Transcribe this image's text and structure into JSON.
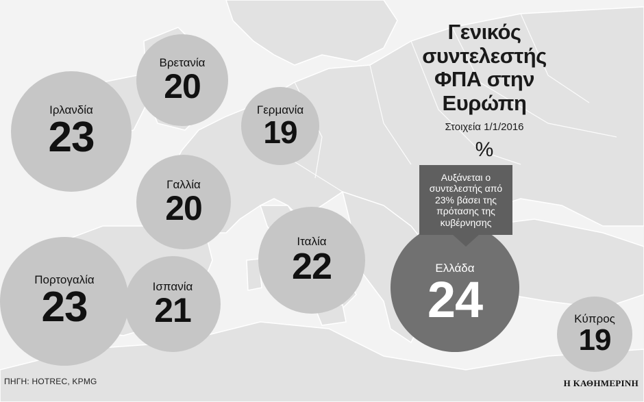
{
  "title": "Γενικός συντελεστής ΦΠΑ στην Ευρώπη",
  "date_note": "Στοιχεία 1/1/2016",
  "unit": "%",
  "callout": "Αυξάνεται ο συντελεστής από 23% βάσει της πρότασης της κυβέρνησης",
  "source": "ΠΗΓΗ: HOTREC, KPMG",
  "publisher": "Η ΚΑΘΗΜΕΡΙΝΗ",
  "colors": {
    "bubble": "#c6c6c6",
    "highlight_bubble": "#717171",
    "callout": "#5f5f5f",
    "land": "#e2e2e2",
    "sea": "#f3f3f3"
  },
  "countries": [
    {
      "name": "Βρετανία",
      "value": 20
    },
    {
      "name": "Ιρλανδία",
      "value": 23
    },
    {
      "name": "Γερμανία",
      "value": 19
    },
    {
      "name": "Γαλλία",
      "value": 20
    },
    {
      "name": "Ιταλία",
      "value": 22
    },
    {
      "name": "Πορτογαλία",
      "value": 23
    },
    {
      "name": "Ισπανία",
      "value": 21
    },
    {
      "name": "Ελλάδα",
      "value": 24
    },
    {
      "name": "Κύπρος",
      "value": 19
    }
  ]
}
